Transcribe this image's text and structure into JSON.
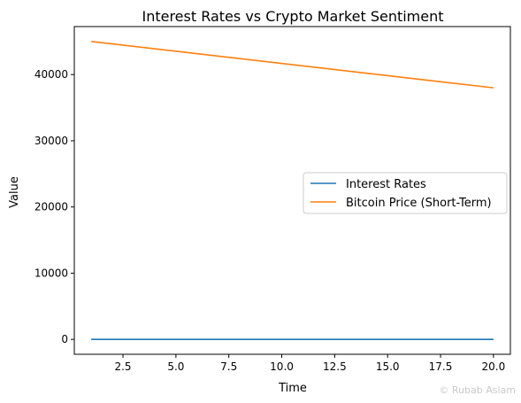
{
  "chart_data": {
    "type": "line",
    "title": "Interest Rates vs Crypto Market Sentiment",
    "xlabel": "Time",
    "ylabel": "Value",
    "xlim": [
      0.2,
      20.8
    ],
    "ylim": [
      -2250,
      47250
    ],
    "xticks": [
      2.5,
      5.0,
      7.5,
      10.0,
      12.5,
      15.0,
      17.5,
      20.0
    ],
    "xtick_labels": [
      "2.5",
      "5.0",
      "7.5",
      "10.0",
      "12.5",
      "15.0",
      "17.5",
      "20.0"
    ],
    "yticks": [
      0,
      10000,
      20000,
      30000,
      40000
    ],
    "ytick_labels": [
      "0",
      "10000",
      "20000",
      "30000",
      "40000"
    ],
    "grid": false,
    "legend_position": "center-right",
    "series": [
      {
        "name": "Interest Rates",
        "color": "#1f77b4",
        "x": [
          1,
          20
        ],
        "y": [
          5,
          5
        ]
      },
      {
        "name": "Bitcoin Price (Short-Term)",
        "color": "#ff7f0e",
        "x": [
          1,
          20
        ],
        "y": [
          45000,
          38000
        ]
      }
    ]
  },
  "watermark": "© Rubab Aslam"
}
